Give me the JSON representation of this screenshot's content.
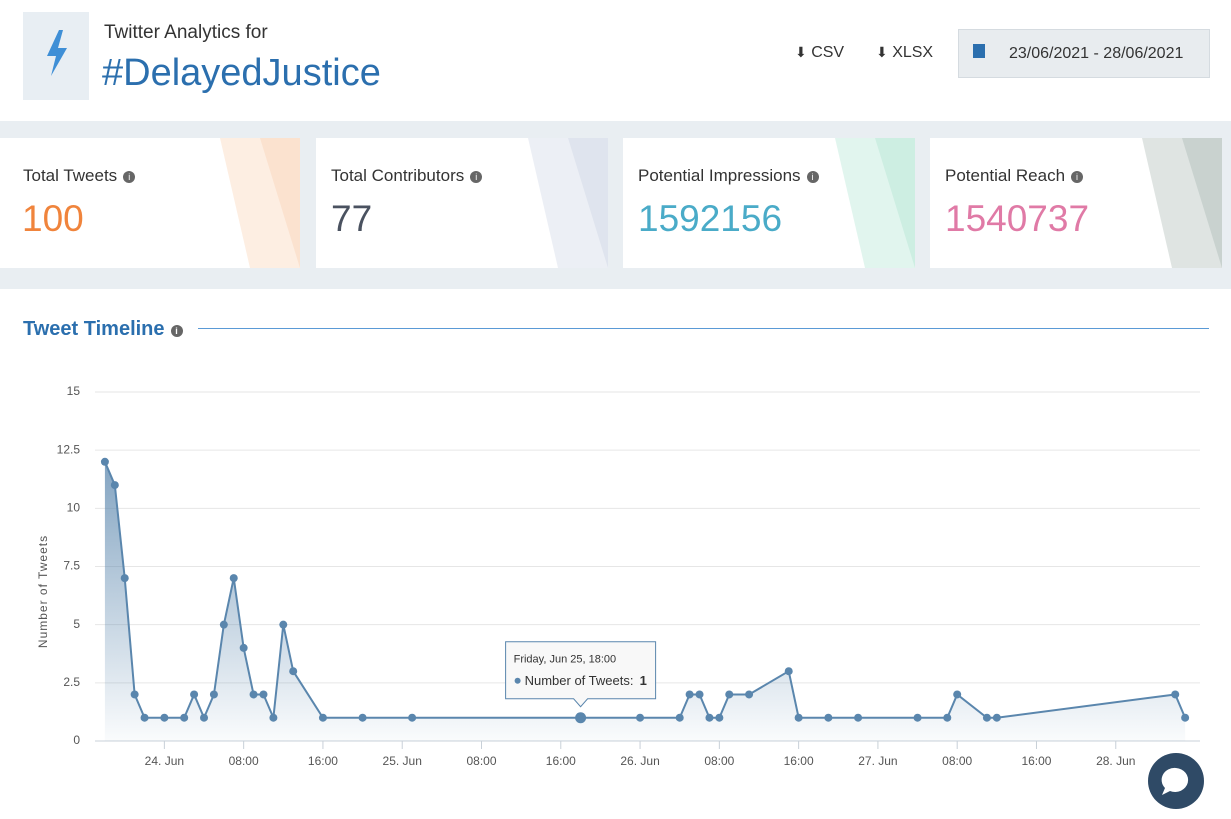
{
  "header": {
    "subtitle": "Twitter Analytics for",
    "title": "#DelayedJustice",
    "buttons": [
      "CSV",
      "XLSX"
    ],
    "date_range": "23/06/2021 - 28/06/2021"
  },
  "stats": [
    {
      "label": "Total Tweets",
      "value": 100,
      "color": "#f0843c"
    },
    {
      "label": "Total Contributors",
      "value": 77,
      "color": "#4a5260"
    },
    {
      "label": "Potential Impressions",
      "value": 1592156,
      "color": "#4aabc8"
    },
    {
      "label": "Potential Reach",
      "value": 1540737,
      "color": "#e07aa6"
    }
  ],
  "section_title": "Tweet Timeline",
  "chart_data": {
    "type": "area",
    "y_label": "Number of Tweets",
    "x": [
      "Jun 23 18:00",
      "Jun 23 19:00",
      "Jun 23 20:00",
      "Jun 23 21:00",
      "Jun 23 22:00",
      "Jun 24 00:00",
      "Jun 24 02:00",
      "Jun 24 03:00",
      "Jun 24 04:00",
      "Jun 24 05:00",
      "Jun 24 06:00",
      "Jun 24 07:00",
      "Jun 24 08:00",
      "Jun 24 09:00",
      "Jun 24 10:00",
      "Jun 24 11:00",
      "Jun 24 12:00",
      "Jun 24 13:00",
      "Jun 24 16:00",
      "Jun 24 20:00",
      "Jun 25 01:00",
      "Jun 25 18:00",
      "Jun 26 00:00",
      "Jun 26 04:00",
      "Jun 26 05:00",
      "Jun 26 06:00",
      "Jun 26 07:00",
      "Jun 26 08:00",
      "Jun 26 09:00",
      "Jun 26 11:00",
      "Jun 26 15:00",
      "Jun 26 16:00",
      "Jun 26 19:00",
      "Jun 26 22:00",
      "Jun 27 04:00",
      "Jun 27 07:00",
      "Jun 27 08:00",
      "Jun 27 11:00",
      "Jun 27 12:00",
      "Jun 28 06:00",
      "Jun 28 07:00"
    ],
    "series": [
      {
        "name": "Number of Tweets",
        "color": "#5a86ad",
        "values": [
          12,
          11,
          7,
          2,
          1,
          1,
          1,
          2,
          1,
          2,
          5,
          7,
          4,
          2,
          2,
          1,
          5,
          3,
          1,
          1,
          1,
          1,
          1,
          1,
          2,
          2,
          1,
          1,
          2,
          2,
          3,
          1,
          1,
          1,
          1,
          1,
          2,
          1,
          1,
          2,
          1
        ]
      }
    ],
    "xlim": [
      "Jun 23 17:00",
      "Jun 28 08:30"
    ],
    "xticks": [
      {
        "value": "Jun 24 00:00",
        "label": "24. Jun"
      },
      {
        "value": "Jun 24 08:00",
        "label": "08:00"
      },
      {
        "value": "Jun 24 16:00",
        "label": "16:00"
      },
      {
        "value": "Jun 25 00:00",
        "label": "25. Jun"
      },
      {
        "value": "Jun 25 08:00",
        "label": "08:00"
      },
      {
        "value": "Jun 25 16:00",
        "label": "16:00"
      },
      {
        "value": "Jun 26 00:00",
        "label": "26. Jun"
      },
      {
        "value": "Jun 26 08:00",
        "label": "08:00"
      },
      {
        "value": "Jun 26 16:00",
        "label": "16:00"
      },
      {
        "value": "Jun 27 00:00",
        "label": "27. Jun"
      },
      {
        "value": "Jun 27 08:00",
        "label": "08:00"
      },
      {
        "value": "Jun 27 16:00",
        "label": "16:00"
      },
      {
        "value": "Jun 28 00:00",
        "label": "28. Jun"
      }
    ],
    "ylim": [
      0,
      15
    ],
    "yticks": [
      0,
      2.5,
      5,
      7.5,
      10,
      12.5,
      15
    ],
    "grid": true,
    "tooltip": {
      "title": "Friday, Jun 25, 18:00",
      "label": "Number of Tweets:",
      "point": 21
    }
  }
}
